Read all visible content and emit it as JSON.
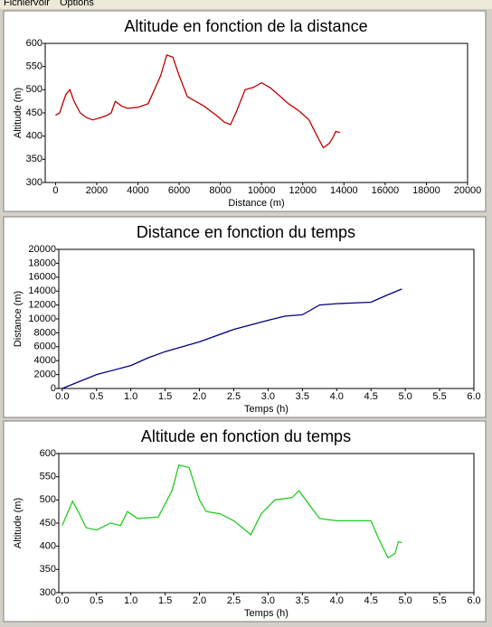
{
  "menu": [
    "Fichier",
    "Voir",
    "Options"
  ],
  "chart_data": [
    {
      "type": "line",
      "title": "Altitude en fonction de la distance",
      "x_label": "Distance (m)",
      "y_label": "Altitude (m)",
      "x": [
        0,
        200,
        500,
        700,
        900,
        1200,
        1500,
        1800,
        2200,
        2500,
        2700,
        2900,
        3200,
        3500,
        4000,
        4500,
        4800,
        5100,
        5400,
        5700,
        6000,
        6400,
        6800,
        7200,
        7800,
        8200,
        8500,
        8800,
        9200,
        9600,
        10000,
        10400,
        10800,
        11300,
        11800,
        12300,
        12700,
        13000,
        13300,
        13500,
        13600,
        13800
      ],
      "series": [
        {
          "name": "Altitude",
          "color": "#c00000",
          "values": [
            445,
            450,
            490,
            500,
            475,
            450,
            440,
            435,
            440,
            445,
            450,
            475,
            465,
            460,
            462,
            470,
            500,
            530,
            575,
            570,
            530,
            485,
            475,
            465,
            445,
            430,
            425,
            455,
            500,
            505,
            515,
            505,
            490,
            470,
            455,
            435,
            400,
            375,
            385,
            400,
            410,
            408
          ]
        }
      ],
      "xlim": [
        -500,
        20000
      ],
      "xticks": [
        0,
        2000,
        4000,
        6000,
        8000,
        10000,
        12000,
        14000,
        16000,
        18000,
        20000
      ],
      "ylim": [
        300,
        600
      ],
      "yticks": [
        300,
        350,
        400,
        450,
        500,
        550,
        600
      ]
    },
    {
      "type": "line",
      "title": "Distance en fonction du temps",
      "x_label": "Temps (h)",
      "y_label": "Distance (m)",
      "x": [
        0,
        0.5,
        1,
        1.25,
        1.5,
        2,
        2.5,
        3,
        3.25,
        3.5,
        3.75,
        4,
        4.5,
        4.75,
        4.95
      ],
      "series": [
        {
          "name": "Distance",
          "color": "#000080",
          "values": [
            0,
            2000,
            3300,
            4400,
            5300,
            6700,
            8500,
            9800,
            10400,
            10600,
            12000,
            12200,
            12400,
            13500,
            14300
          ]
        }
      ],
      "xlim": [
        -0.05,
        6.0
      ],
      "xticks": [
        {
          "value": 0,
          "label": "0.0"
        },
        0.5,
        {
          "value": 1,
          "label": "1.0"
        },
        1.5,
        {
          "value": 2,
          "label": "2.0"
        },
        2.5,
        {
          "value": 3,
          "label": "3.0"
        },
        3.5,
        {
          "value": 4,
          "label": "4.0"
        },
        4.5,
        {
          "value": 5,
          "label": "5.0"
        },
        5.5,
        {
          "value": 6,
          "label": "6.0"
        }
      ],
      "ylim": [
        0,
        20000
      ],
      "yticks": [
        0,
        2000,
        4000,
        6000,
        8000,
        10000,
        12000,
        14000,
        16000,
        18000,
        20000
      ]
    },
    {
      "type": "line",
      "title": "Altitude en fonction du temps",
      "x_label": "Temps (h)",
      "y_label": "Altitude (m)",
      "x": [
        0,
        0.1,
        0.15,
        0.25,
        0.35,
        0.5,
        0.7,
        0.85,
        0.95,
        1.1,
        1.4,
        1.6,
        1.7,
        1.85,
        2,
        2.1,
        2.3,
        2.5,
        2.75,
        2.9,
        3.1,
        3.35,
        3.45,
        3.55,
        3.75,
        4,
        4.5,
        4.6,
        4.75,
        4.85,
        4.9,
        4.95
      ],
      "series": [
        {
          "name": "Altitude",
          "color": "#22cc22",
          "values": [
            445,
            480,
            497,
            470,
            440,
            435,
            450,
            445,
            475,
            460,
            463,
            520,
            575,
            570,
            500,
            475,
            470,
            455,
            425,
            470,
            500,
            505,
            520,
            500,
            460,
            455,
            455,
            420,
            375,
            385,
            410,
            408
          ]
        }
      ],
      "xlim": [
        -0.05,
        6.0
      ],
      "xticks": [
        {
          "value": 0,
          "label": "0.0"
        },
        0.5,
        {
          "value": 1,
          "label": "1.0"
        },
        1.5,
        {
          "value": 2,
          "label": "2.0"
        },
        2.5,
        {
          "value": 3,
          "label": "3.0"
        },
        3.5,
        {
          "value": 4,
          "label": "4.0"
        },
        4.5,
        {
          "value": 5,
          "label": "5.0"
        },
        5.5,
        {
          "value": 6,
          "label": "6.0"
        }
      ],
      "ylim": [
        300,
        600
      ],
      "yticks": [
        300,
        350,
        400,
        450,
        500,
        550,
        600
      ]
    }
  ]
}
